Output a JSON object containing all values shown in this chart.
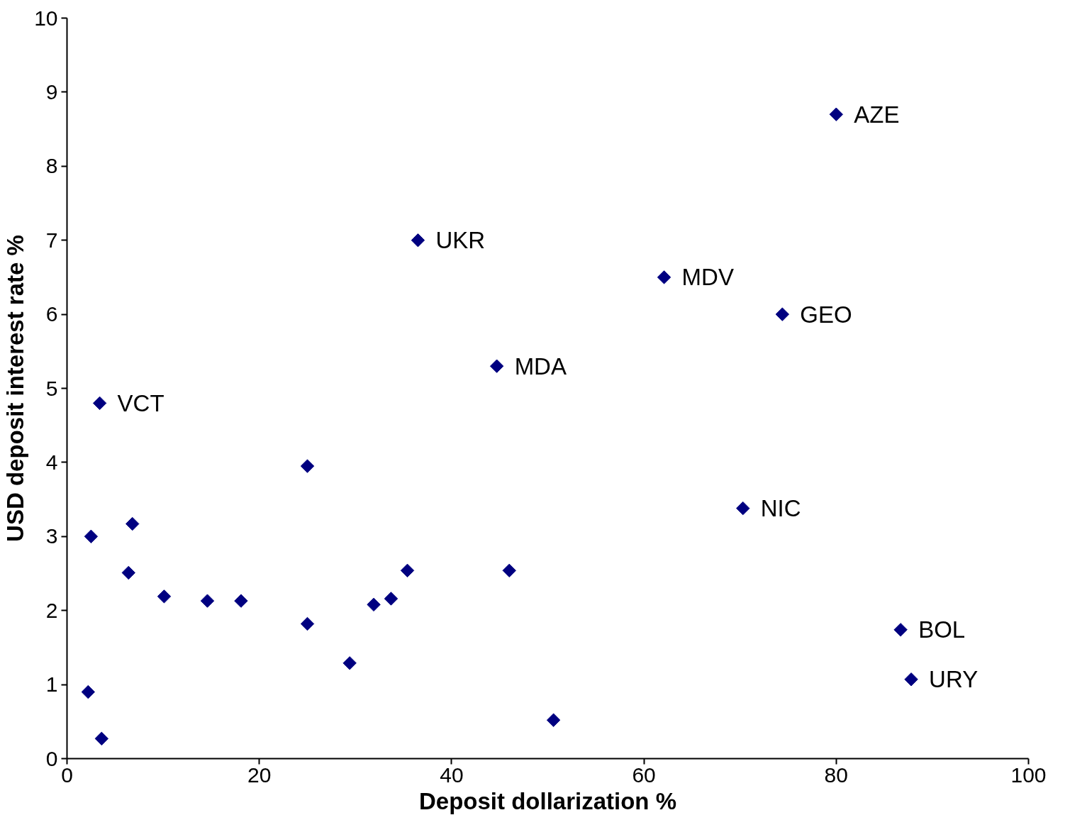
{
  "chart_data": {
    "type": "scatter",
    "xlabel": "Deposit dollarization %",
    "ylabel": "USD deposit interest rate %",
    "x": [
      80,
      36.5,
      62.1,
      74.4,
      44.7,
      3.4,
      25.0,
      70.3,
      2.5,
      6.8,
      6.4,
      10.1,
      14.6,
      18.1,
      25.0,
      29.4,
      31.9,
      33.7,
      35.4,
      46.0,
      50.6,
      86.7,
      87.8,
      2.2,
      3.6
    ],
    "series": [
      {
        "color": "#000080",
        "values": [
          8.7,
          7.0,
          6.5,
          6.0,
          5.3,
          4.8,
          3.95,
          3.38,
          3.0,
          3.17,
          2.51,
          2.19,
          2.13,
          2.13,
          1.82,
          1.29,
          2.08,
          2.16,
          2.54,
          2.54,
          0.52,
          1.74,
          1.07,
          0.9,
          0.27
        ]
      }
    ],
    "xlim": [
      0,
      100
    ],
    "xticks": [
      0,
      20,
      40,
      60,
      80,
      100
    ],
    "ylim": [
      0,
      10
    ],
    "yticks": [
      0,
      1,
      2,
      3,
      4,
      5,
      6,
      7,
      8,
      9,
      10
    ],
    "marker": "diamond",
    "grid": false,
    "annotations": [
      {
        "text": "AZE",
        "x": 80,
        "y": 8.7
      },
      {
        "text": "UKR",
        "x": 36.5,
        "y": 7.0
      },
      {
        "text": "MDV",
        "x": 62.1,
        "y": 6.5
      },
      {
        "text": "GEO",
        "x": 74.4,
        "y": 6.0
      },
      {
        "text": "MDA",
        "x": 44.7,
        "y": 5.3
      },
      {
        "text": "VCT",
        "x": 3.4,
        "y": 4.8
      },
      {
        "text": "NIC",
        "x": 70.3,
        "y": 3.38
      },
      {
        "text": "BOL",
        "x": 86.7,
        "y": 1.74
      },
      {
        "text": "URY",
        "x": 87.8,
        "y": 1.07
      }
    ]
  }
}
